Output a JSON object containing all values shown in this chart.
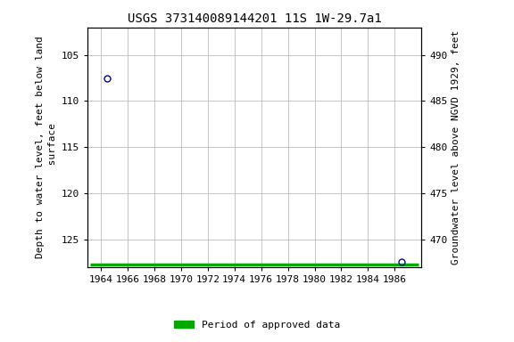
{
  "title": "USGS 373140089144201 11S 1W-29.7a1",
  "ylabel_left": "Depth to water level, feet below land\n surface",
  "ylabel_right": "Groundwater level above NGVD 1929, feet",
  "xlim": [
    1963.0,
    1988.0
  ],
  "ylim_left": [
    128.0,
    102.0
  ],
  "ylim_right": [
    467.0,
    493.0
  ],
  "yticks_left": [
    105,
    110,
    115,
    120,
    125
  ],
  "yticks_right": [
    490,
    485,
    480,
    475,
    470
  ],
  "xticks": [
    1964,
    1966,
    1968,
    1970,
    1972,
    1974,
    1976,
    1978,
    1980,
    1982,
    1984,
    1986
  ],
  "point1_x": 1964.5,
  "point1_y": 107.5,
  "point2_x": 1986.5,
  "point2_y": 127.5,
  "green_bar_x_start": 1963.2,
  "green_bar_x_end": 1987.8,
  "green_bar_y": 127.8,
  "point_color": "#0000bb",
  "green_bar_color": "#00aa00",
  "grid_color": "#bbbbbb",
  "bg_color": "#ffffff",
  "title_fontsize": 10,
  "label_fontsize": 8,
  "tick_fontsize": 8,
  "legend_fontsize": 8
}
